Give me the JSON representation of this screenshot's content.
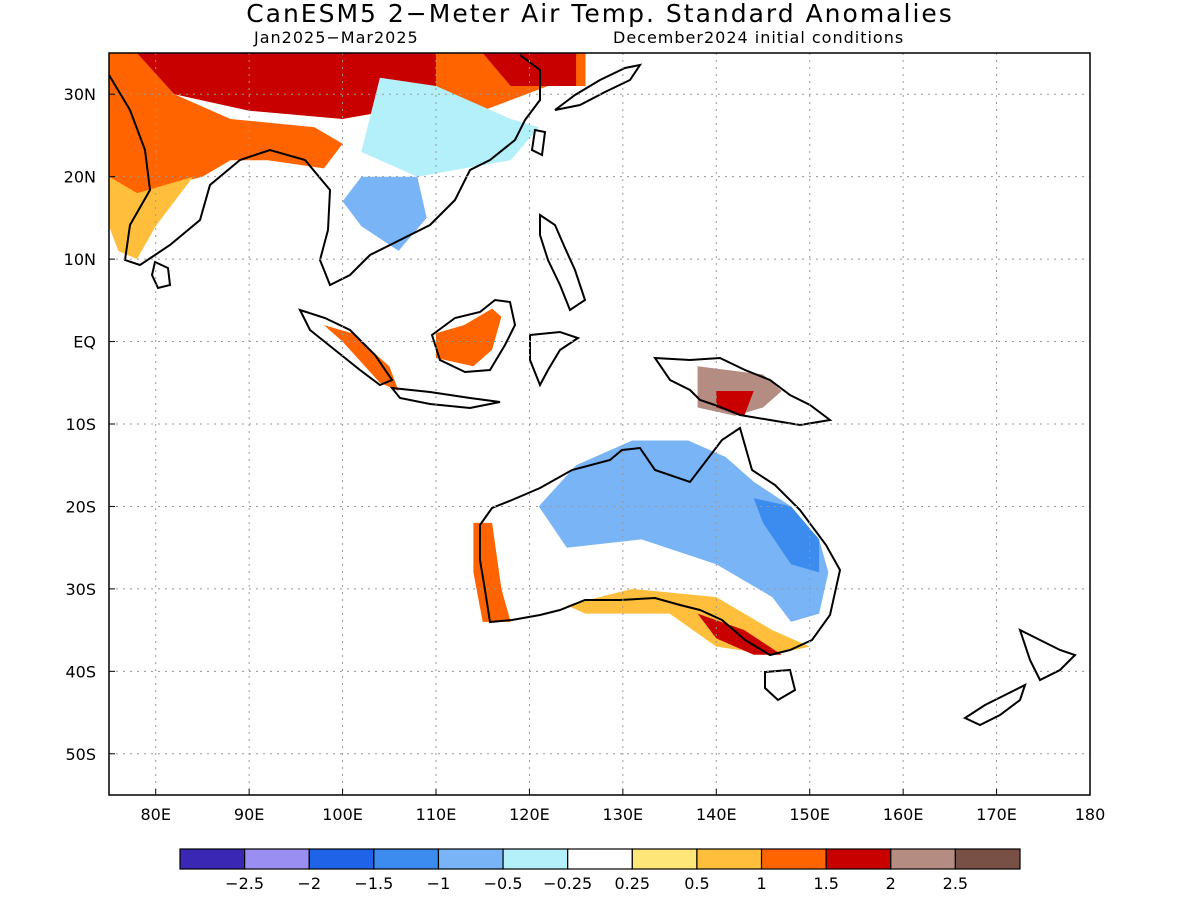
{
  "title": "CanESM5 2−Meter Air Temp. Standard Anomalies",
  "subtitle_left": "Jan2025−Mar2025",
  "subtitle_right": "December2024 initial conditions",
  "map": {
    "lon_range": [
      75,
      180
    ],
    "lat_range": [
      -55,
      35
    ],
    "lon_ticks": [
      {
        "v": 80,
        "label": "80E"
      },
      {
        "v": 90,
        "label": "90E"
      },
      {
        "v": 100,
        "label": "100E"
      },
      {
        "v": 110,
        "label": "110E"
      },
      {
        "v": 120,
        "label": "120E"
      },
      {
        "v": 130,
        "label": "130E"
      },
      {
        "v": 140,
        "label": "140E"
      },
      {
        "v": 150,
        "label": "150E"
      },
      {
        "v": 160,
        "label": "160E"
      },
      {
        "v": 170,
        "label": "170E"
      },
      {
        "v": 180,
        "label": "180"
      }
    ],
    "lat_ticks": [
      {
        "v": 30,
        "label": "30N"
      },
      {
        "v": 20,
        "label": "20N"
      },
      {
        "v": 10,
        "label": "10N"
      },
      {
        "v": 0,
        "label": "EQ"
      },
      {
        "v": -10,
        "label": "10S"
      },
      {
        "v": -20,
        "label": "20S"
      },
      {
        "v": -30,
        "label": "30S"
      },
      {
        "v": -40,
        "label": "40S"
      },
      {
        "v": -50,
        "label": "50S"
      }
    ],
    "grid": true
  },
  "colorbar": {
    "colors": [
      "#3a28b4",
      "#9b8ef2",
      "#1f64e8",
      "#3c8cf0",
      "#78b4f6",
      "#b4f0fa",
      "#ffffff",
      "#ffe678",
      "#ffbe3c",
      "#ff6400",
      "#c80000",
      "#b48c82",
      "#785046"
    ],
    "labels": [
      "−2.5",
      "−2",
      "−1.5",
      "−1",
      "−0.5",
      "−0.25",
      "0.25",
      "0.5",
      "1",
      "1.5",
      "2",
      "2.5"
    ]
  },
  "anomaly_regions": [
    {
      "name": "china-north-warm",
      "value": 2.0,
      "color": "#c80000",
      "poly": [
        [
          78,
          35
        ],
        [
          110,
          35
        ],
        [
          110,
          29
        ],
        [
          100,
          27
        ],
        [
          90,
          28
        ],
        [
          82,
          30
        ],
        [
          78,
          32
        ]
      ]
    },
    {
      "name": "india-warm",
      "value": 1.5,
      "color": "#ff6400",
      "poly": [
        [
          75,
          35
        ],
        [
          78,
          35
        ],
        [
          82,
          30
        ],
        [
          88,
          27
        ],
        [
          97,
          26
        ],
        [
          100,
          24
        ],
        [
          98,
          21
        ],
        [
          92,
          22
        ],
        [
          88,
          22
        ],
        [
          85,
          20
        ],
        [
          78,
          18
        ],
        [
          75,
          20
        ]
      ]
    },
    {
      "name": "india-mild",
      "value": 0.75,
      "color": "#ffbe3c",
      "poly": [
        [
          75,
          20
        ],
        [
          78,
          18
        ],
        [
          84,
          20
        ],
        [
          80,
          14
        ],
        [
          78,
          10
        ],
        [
          76,
          11
        ],
        [
          75,
          14
        ]
      ]
    },
    {
      "name": "east-china-warm",
      "value": 1.5,
      "color": "#ff6400",
      "poly": [
        [
          110,
          35
        ],
        [
          126,
          35
        ],
        [
          126,
          31
        ],
        [
          122,
          31
        ],
        [
          115,
          28
        ],
        [
          110,
          29
        ]
      ]
    },
    {
      "name": "korea-very-warm",
      "value": 2.0,
      "color": "#c80000",
      "poly": [
        [
          115,
          35
        ],
        [
          125,
          35
        ],
        [
          125,
          31
        ],
        [
          118,
          31
        ]
      ]
    },
    {
      "name": "south-china-cool",
      "value": -0.5,
      "color": "#b4f0fa",
      "poly": [
        [
          104,
          32
        ],
        [
          110,
          31
        ],
        [
          118,
          27
        ],
        [
          121,
          26
        ],
        [
          118,
          22
        ],
        [
          108,
          20
        ],
        [
          102,
          23
        ]
      ]
    },
    {
      "name": "indochina-cool",
      "value": -1.0,
      "color": "#78b4f6",
      "poly": [
        [
          102,
          20
        ],
        [
          108,
          20
        ],
        [
          109,
          15
        ],
        [
          106,
          11
        ],
        [
          102,
          14
        ],
        [
          100,
          17
        ]
      ]
    },
    {
      "name": "sumatra-warm",
      "value": 1.5,
      "color": "#ff6400",
      "poly": [
        [
          98,
          2
        ],
        [
          101,
          1
        ],
        [
          105,
          -3
        ],
        [
          106,
          -6
        ],
        [
          104,
          -5
        ],
        [
          100,
          0
        ]
      ]
    },
    {
      "name": "borneo-warm",
      "value": 1.5,
      "color": "#ff6400",
      "poly": [
        [
          110,
          -2
        ],
        [
          110,
          1
        ],
        [
          113,
          2
        ],
        [
          116,
          4
        ],
        [
          117,
          3
        ],
        [
          116,
          -1
        ],
        [
          114,
          -3
        ]
      ]
    },
    {
      "name": "new-guinea-hot",
      "value": 2.5,
      "color": "#b48c82",
      "poly": [
        [
          138,
          -3
        ],
        [
          145,
          -4
        ],
        [
          147,
          -6
        ],
        [
          145,
          -8
        ],
        [
          142,
          -9
        ],
        [
          138,
          -8
        ]
      ]
    },
    {
      "name": "new-guinea-core",
      "value": 2.0,
      "color": "#c80000",
      "poly": [
        [
          140,
          -6
        ],
        [
          144,
          -6
        ],
        [
          143,
          -9
        ],
        [
          140,
          -8
        ]
      ]
    },
    {
      "name": "aus-north-cool",
      "value": -1.0,
      "color": "#78b4f6",
      "poly": [
        [
          121,
          -20
        ],
        [
          125,
          -15
        ],
        [
          131,
          -12
        ],
        [
          137,
          -12
        ],
        [
          141,
          -14
        ],
        [
          144,
          -17
        ],
        [
          148,
          -20
        ],
        [
          151,
          -24
        ],
        [
          152,
          -28
        ],
        [
          151,
          -33
        ],
        [
          148,
          -34
        ],
        [
          146,
          -31
        ],
        [
          140,
          -27
        ],
        [
          132,
          -24
        ],
        [
          124,
          -25
        ]
      ]
    },
    {
      "name": "aus-east-colder",
      "value": -1.5,
      "color": "#3c8cf0",
      "poly": [
        [
          144,
          -19
        ],
        [
          148,
          -20
        ],
        [
          151,
          -24
        ],
        [
          151,
          -28
        ],
        [
          148,
          -27
        ],
        [
          145,
          -22
        ]
      ]
    },
    {
      "name": "aus-south-warm",
      "value": 1.0,
      "color": "#ffbe3c",
      "poly": [
        [
          124,
          -32
        ],
        [
          131,
          -30
        ],
        [
          140,
          -31
        ],
        [
          146,
          -35
        ],
        [
          150,
          -37
        ],
        [
          146,
          -38
        ],
        [
          140,
          -37
        ],
        [
          135,
          -33
        ],
        [
          126,
          -33
        ]
      ]
    },
    {
      "name": "aus-se-very-warm",
      "value": 2.0,
      "color": "#c80000",
      "poly": [
        [
          138,
          -33
        ],
        [
          143,
          -35
        ],
        [
          147,
          -38
        ],
        [
          144,
          -38
        ],
        [
          140,
          -36
        ]
      ]
    },
    {
      "name": "aus-west-warm",
      "value": 1.5,
      "color": "#ff6400",
      "poly": [
        [
          114,
          -22
        ],
        [
          116,
          -22
        ],
        [
          117,
          -30
        ],
        [
          118,
          -34
        ],
        [
          115,
          -34
        ],
        [
          114,
          -28
        ]
      ]
    }
  ]
}
